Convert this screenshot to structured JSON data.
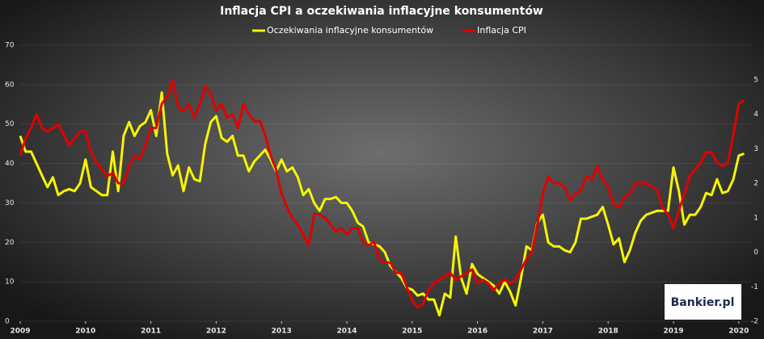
{
  "chart_data": {
    "type": "line",
    "title": "Inflacja CPI a oczekiwania inflacyjne konsumentów",
    "x": [
      2009,
      2009.083,
      2009.167,
      2009.25,
      2009.333,
      2009.417,
      2009.5,
      2009.583,
      2009.667,
      2009.75,
      2009.833,
      2009.917,
      2010,
      2010.083,
      2010.167,
      2010.25,
      2010.333,
      2010.417,
      2010.5,
      2010.583,
      2010.667,
      2010.75,
      2010.833,
      2010.917,
      2011,
      2011.083,
      2011.167,
      2011.25,
      2011.333,
      2011.417,
      2011.5,
      2011.583,
      2011.667,
      2011.75,
      2011.833,
      2011.917,
      2012,
      2012.083,
      2012.167,
      2012.25,
      2012.333,
      2012.417,
      2012.5,
      2012.583,
      2012.667,
      2012.75,
      2012.833,
      2012.917,
      2013,
      2013.083,
      2013.167,
      2013.25,
      2013.333,
      2013.417,
      2013.5,
      2013.583,
      2013.667,
      2013.75,
      2013.833,
      2013.917,
      2014,
      2014.083,
      2014.167,
      2014.25,
      2014.333,
      2014.417,
      2014.5,
      2014.583,
      2014.667,
      2014.75,
      2014.833,
      2014.917,
      2015,
      2015.083,
      2015.167,
      2015.25,
      2015.333,
      2015.417,
      2015.5,
      2015.583,
      2015.667,
      2015.75,
      2015.833,
      2015.917,
      2016,
      2016.083,
      2016.167,
      2016.25,
      2016.333,
      2016.417,
      2016.5,
      2016.583,
      2016.667,
      2016.75,
      2016.833,
      2016.917,
      2017,
      2017.083,
      2017.167,
      2017.25,
      2017.333,
      2017.417,
      2017.5,
      2017.583,
      2017.667,
      2017.75,
      2017.833,
      2017.917,
      2018,
      2018.083,
      2018.167,
      2018.25,
      2018.333,
      2018.417,
      2018.5,
      2018.583,
      2018.667,
      2018.75,
      2018.833,
      2018.917,
      2019,
      2019.083,
      2019.167,
      2019.25,
      2019.333,
      2019.417,
      2019.5,
      2019.583,
      2019.667,
      2019.75,
      2019.833,
      2019.917,
      2020,
      2020.083
    ],
    "series": [
      {
        "name": "Oczekiwania inflacyjne konsumentów",
        "color": "#f5f500",
        "axis": "y",
        "values": [
          47,
          43,
          43,
          40,
          37,
          34,
          36.5,
          32,
          33,
          33.5,
          33,
          35,
          41,
          34,
          33,
          32,
          32,
          43,
          33,
          47,
          50.5,
          47,
          49.5,
          50.5,
          53.5,
          47,
          58,
          42.5,
          37,
          39.5,
          33,
          39,
          36,
          35.5,
          45,
          50.5,
          52,
          46.5,
          45.5,
          47,
          42,
          42,
          38,
          40.5,
          42,
          43.5,
          41,
          38,
          41,
          38,
          39,
          36.5,
          32,
          33.5,
          30,
          28,
          31,
          31,
          31.5,
          30,
          30,
          28,
          25,
          24,
          20,
          19.5,
          19,
          17.5,
          14,
          12.5,
          11,
          8.5,
          8,
          6.5,
          7,
          5.5,
          5.5,
          1.5,
          7,
          6,
          21.5,
          11,
          7,
          14.5,
          12,
          11,
          10,
          9,
          7,
          10,
          7.5,
          4,
          11,
          19,
          18,
          25,
          27,
          20,
          19,
          19,
          18,
          17.5,
          20,
          26,
          26,
          26.5,
          27,
          29,
          24.5,
          19.5,
          21,
          15,
          18,
          22.5,
          25.5,
          27,
          27.5,
          28,
          28,
          28,
          39,
          33,
          24.5,
          27,
          27,
          29,
          32.5,
          32,
          36,
          32.5,
          33,
          36,
          42,
          42.5
        ]
      },
      {
        "name": "Inflacja CPI",
        "color": "#e00000",
        "axis": "y2",
        "values": [
          2.8,
          3.3,
          3.6,
          4.0,
          3.6,
          3.5,
          3.6,
          3.7,
          3.4,
          3.1,
          3.3,
          3.5,
          3.5,
          2.9,
          2.6,
          2.4,
          2.2,
          2.3,
          2.0,
          2.0,
          2.5,
          2.8,
          2.7,
          3.1,
          3.6,
          3.6,
          4.3,
          4.5,
          5.0,
          4.2,
          4.1,
          4.3,
          3.9,
          4.3,
          4.8,
          4.6,
          4.1,
          4.3,
          3.9,
          4.0,
          3.6,
          4.3,
          4.0,
          3.8,
          3.8,
          3.4,
          2.8,
          2.4,
          1.7,
          1.3,
          1.0,
          0.8,
          0.5,
          0.2,
          1.1,
          1.1,
          1.0,
          0.8,
          0.6,
          0.7,
          0.5,
          0.7,
          0.7,
          0.3,
          0.2,
          0.3,
          -0.2,
          -0.3,
          -0.3,
          -0.6,
          -0.6,
          -1.0,
          -1.4,
          -1.6,
          -1.5,
          -1.1,
          -0.9,
          -0.8,
          -0.7,
          -0.6,
          -0.8,
          -0.7,
          -0.6,
          -0.5,
          -0.9,
          -0.8,
          -0.9,
          -1.1,
          -0.9,
          -0.8,
          -0.9,
          -0.8,
          -0.5,
          -0.2,
          0.0,
          0.8,
          1.7,
          2.2,
          2.0,
          2.0,
          1.9,
          1.5,
          1.7,
          1.8,
          2.2,
          2.1,
          2.5,
          2.1,
          1.9,
          1.4,
          1.3,
          1.6,
          1.7,
          2.0,
          2.0,
          2.0,
          1.9,
          1.8,
          1.3,
          1.1,
          0.7,
          1.2,
          1.7,
          2.2,
          2.4,
          2.6,
          2.9,
          2.9,
          2.6,
          2.5,
          2.6,
          3.4,
          4.3,
          4.4
        ]
      }
    ],
    "xlim": [
      2009,
      2020.2
    ],
    "xticks": [
      2009,
      2010,
      2011,
      2012,
      2013,
      2014,
      2015,
      2016,
      2017,
      2018,
      2019,
      2020
    ],
    "ylim": [
      0,
      70
    ],
    "yticks": [
      0,
      10,
      20,
      30,
      40,
      50,
      60,
      70
    ],
    "y2lim": [
      -2,
      6
    ],
    "y2ticks": [
      -2,
      -1,
      0,
      1,
      2,
      3,
      4,
      5
    ],
    "grid": true,
    "legend": "top"
  },
  "watermark": "Bankier.pl"
}
